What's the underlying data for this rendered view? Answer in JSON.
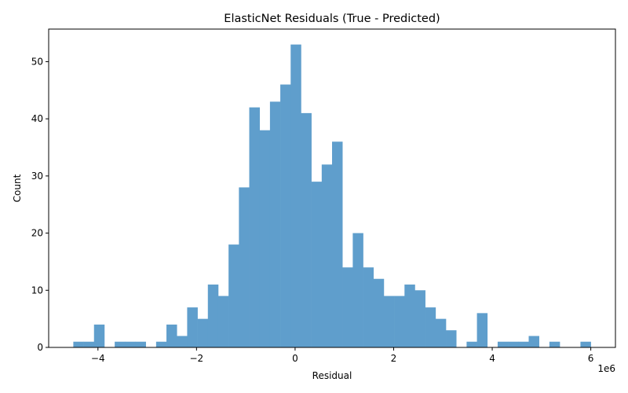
{
  "chart_data": {
    "type": "bar",
    "title": "ElasticNet Residuals (True - Predicted)",
    "xlabel": "Residual",
    "ylabel": "Count",
    "x_offset_label": "1e6",
    "xlim": [
      -5.0,
      6.5
    ],
    "ylim": [
      0,
      55.7
    ],
    "xticks": [
      -4,
      -2,
      0,
      2,
      4,
      6
    ],
    "xtick_labels": [
      "−4",
      "−2",
      "0",
      "2",
      "4",
      "6"
    ],
    "yticks": [
      0,
      10,
      20,
      30,
      40,
      50
    ],
    "bin_start": -4.5,
    "bin_width": 0.21,
    "values": [
      1,
      1,
      4,
      0,
      1,
      1,
      1,
      0,
      1,
      4,
      2,
      7,
      5,
      11,
      9,
      18,
      28,
      42,
      38,
      43,
      46,
      53,
      41,
      29,
      32,
      36,
      14,
      20,
      14,
      12,
      9,
      9,
      11,
      10,
      7,
      5,
      3,
      0,
      1,
      6,
      0,
      1,
      1,
      1,
      2,
      0,
      1,
      0,
      0,
      1
    ],
    "bar_color": "#5f9ecc",
    "grid": false
  }
}
